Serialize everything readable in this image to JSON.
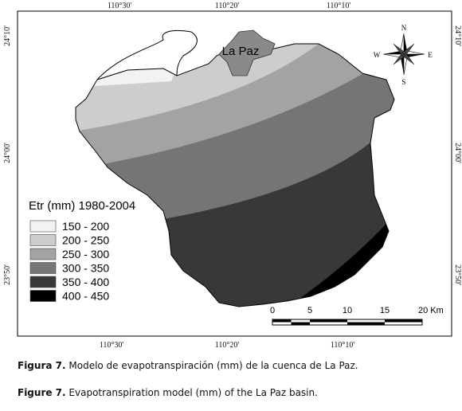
{
  "map": {
    "coords_top": [
      "110°30'",
      "110°20'",
      "110°10'"
    ],
    "coords_bottom": [
      "110°30'",
      "110°20'",
      "110°10'"
    ],
    "coords_left": [
      "24°10'",
      "24°00'",
      "23°50'"
    ],
    "coords_right": [
      "24°10'",
      "24°00'",
      "23°50'"
    ],
    "city_label": "La Paz",
    "compass": {
      "n": "N",
      "s": "S",
      "e": "E",
      "w": "W"
    },
    "legend": {
      "title": "Etr (mm) 1980-2004",
      "items": [
        {
          "label": "150 - 200",
          "color": "#f2f2f2"
        },
        {
          "label": "200 - 250",
          "color": "#cdcdcd"
        },
        {
          "label": "250 - 300",
          "color": "#a3a3a3"
        },
        {
          "label": "300 - 350",
          "color": "#757575"
        },
        {
          "label": "350 - 400",
          "color": "#383838"
        },
        {
          "label": "400 - 450",
          "color": "#000000"
        }
      ]
    },
    "scale_bar": {
      "labels": [
        "0",
        "5",
        "10",
        "15",
        "20 Km"
      ]
    }
  },
  "caption": {
    "spanish": {
      "label": "Figura 7.",
      "text": "Modelo de evapotranspiración (mm) de la cuenca de La Paz."
    },
    "english": {
      "label": "Figure 7.",
      "text": "Evapotranspiration model (mm) of the La Paz basin."
    }
  }
}
